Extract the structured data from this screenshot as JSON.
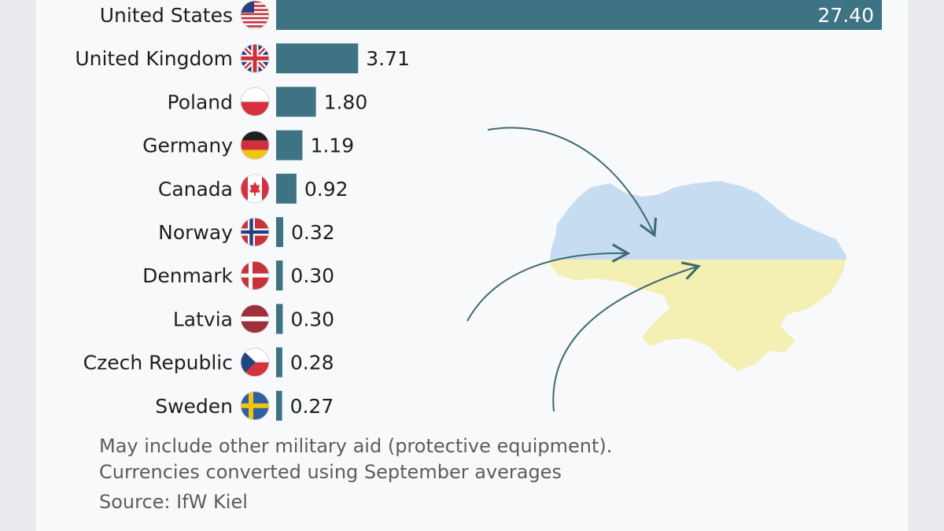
{
  "chart_data": {
    "type": "bar",
    "orientation": "horizontal",
    "categories": [
      "United States",
      "United Kingdom",
      "Poland",
      "Germany",
      "Canada",
      "Norway",
      "Denmark",
      "Latvia",
      "Czech Republic",
      "Sweden"
    ],
    "values": [
      27.4,
      3.71,
      1.8,
      1.19,
      0.92,
      0.32,
      0.3,
      0.3,
      0.28,
      0.27
    ],
    "value_labels": [
      "27.40",
      "3.71",
      "1.80",
      "1.19",
      "0.92",
      "0.32",
      "0.30",
      "0.30",
      "0.28",
      "0.27"
    ],
    "flags": [
      "us-flag-icon",
      "uk-flag-icon",
      "poland-flag-icon",
      "germany-flag-icon",
      "canada-flag-icon",
      "norway-flag-icon",
      "denmark-flag-icon",
      "latvia-flag-icon",
      "czech-flag-icon",
      "sweden-flag-icon"
    ],
    "xlim": [
      0,
      27.4
    ],
    "grid": false,
    "bar_color": "#3d7382",
    "decoration": "ukraine-map-with-arrows"
  },
  "notes": {
    "line1": "May include other military aid (protective equipment).",
    "line2": "Currencies converted using September averages",
    "source": "Source: IfW Kiel"
  },
  "colors": {
    "bar": "#3d7382",
    "background": "#f8f9fb",
    "ukraine_blue": "#c6dcf1",
    "ukraine_yellow": "#f4efb3",
    "arrow": "#3e6a73"
  }
}
